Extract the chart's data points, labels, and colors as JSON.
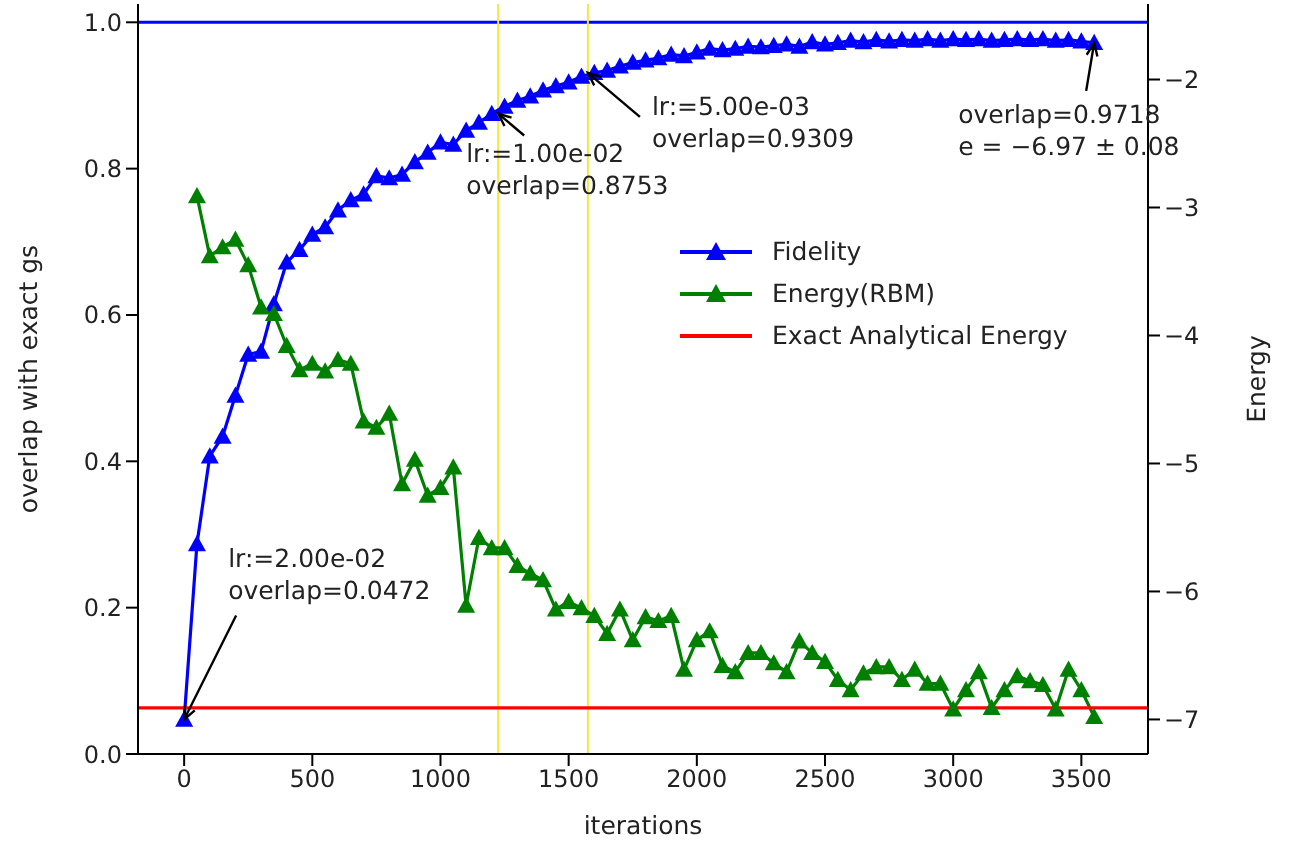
{
  "chart_data": {
    "type": "line",
    "xlabel": "iterations",
    "ylabel": "overlap with exact gs",
    "y2label": "Energy",
    "x": [
      0,
      50,
      100,
      150,
      200,
      250,
      300,
      350,
      400,
      450,
      500,
      550,
      600,
      650,
      700,
      750,
      800,
      850,
      900,
      950,
      1000,
      1050,
      1100,
      1150,
      1200,
      1250,
      1300,
      1350,
      1400,
      1450,
      1500,
      1550,
      1600,
      1650,
      1700,
      1750,
      1800,
      1850,
      1900,
      1950,
      2000,
      2050,
      2100,
      2150,
      2200,
      2250,
      2300,
      2350,
      2400,
      2450,
      2500,
      2550,
      2600,
      2650,
      2700,
      2750,
      2800,
      2850,
      2900,
      2950,
      3000,
      3050,
      3100,
      3150,
      3200,
      3250,
      3300,
      3350,
      3400,
      3450,
      3500,
      3550
    ],
    "series": [
      {
        "name": "Fidelity",
        "color": "#0000ff",
        "marker": "triangle",
        "values": [
          0.047,
          0.287,
          0.407,
          0.434,
          0.49,
          0.546,
          0.55,
          0.615,
          0.672,
          0.689,
          0.71,
          0.72,
          0.743,
          0.757,
          0.765,
          0.79,
          0.787,
          0.792,
          0.809,
          0.822,
          0.836,
          0.833,
          0.852,
          0.863,
          0.875,
          0.885,
          0.893,
          0.899,
          0.907,
          0.913,
          0.918,
          0.926,
          0.931,
          0.934,
          0.94,
          0.945,
          0.948,
          0.951,
          0.956,
          0.954,
          0.959,
          0.964,
          0.962,
          0.964,
          0.967,
          0.966,
          0.968,
          0.97,
          0.967,
          0.973,
          0.97,
          0.972,
          0.975,
          0.973,
          0.976,
          0.974,
          0.976,
          0.975,
          0.977,
          0.975,
          0.977,
          0.976,
          0.977,
          0.975,
          0.976,
          0.977,
          0.976,
          0.977,
          0.975,
          0.976,
          0.974,
          0.972
        ]
      },
      {
        "name": "Energy(RBM)",
        "color": "#008000",
        "marker": "triangle",
        "axis": "y2",
        "values": [
          null,
          -2.91,
          -3.38,
          -3.31,
          -3.25,
          -3.45,
          -3.78,
          -3.83,
          -4.08,
          -4.27,
          -4.22,
          -4.28,
          -4.19,
          -4.22,
          -4.67,
          -4.72,
          -4.61,
          -5.16,
          -4.97,
          -5.25,
          -5.19,
          -5.03,
          -6.11,
          -5.58,
          -5.66,
          -5.66,
          -5.8,
          -5.86,
          -5.91,
          -6.14,
          -6.08,
          -6.13,
          -6.19,
          -6.33,
          -6.14,
          -6.38,
          -6.2,
          -6.23,
          -6.19,
          -6.61,
          -6.38,
          -6.31,
          -6.58,
          -6.63,
          -6.48,
          -6.48,
          -6.56,
          -6.63,
          -6.39,
          -6.48,
          -6.55,
          -6.69,
          -6.77,
          -6.64,
          -6.59,
          -6.59,
          -6.69,
          -6.61,
          -6.72,
          -6.72,
          -6.92,
          -6.77,
          -6.63,
          -6.91,
          -6.77,
          -6.66,
          -6.7,
          -6.73,
          -6.92,
          -6.61,
          -6.77,
          -6.98
        ]
      },
      {
        "name": "Exact Analytical Energy",
        "color": "#ff0000",
        "marker": "none",
        "axis": "y2",
        "x": [
          -180,
          3760
        ],
        "values": [
          -6.91,
          -6.91
        ]
      }
    ],
    "xlim": [
      -180,
      3760
    ],
    "xticks": [
      0,
      500,
      1000,
      1500,
      2000,
      2500,
      3000,
      3500
    ],
    "ylim": [
      0,
      1.025
    ],
    "yticks": [
      {
        "value": 0,
        "label": "0.0"
      },
      {
        "value": 0.2,
        "label": "0.2"
      },
      {
        "value": 0.4,
        "label": "0.4"
      },
      {
        "value": 0.6,
        "label": "0.6"
      },
      {
        "value": 0.8,
        "label": "0.8"
      },
      {
        "value": 1,
        "label": "1.0"
      }
    ],
    "y2lim": [
      -7.27,
      -1.41
    ],
    "y2ticks": [
      {
        "value": -2,
        "label": "−2"
      },
      {
        "value": -3,
        "label": "−3"
      },
      {
        "value": -4,
        "label": "−4"
      },
      {
        "value": -5,
        "label": "−5"
      },
      {
        "value": -6,
        "label": "−6"
      },
      {
        "value": -7,
        "label": "−7"
      }
    ],
    "ref_lines": [
      {
        "axis": "y",
        "value": 1,
        "color": "#0000ff"
      },
      {
        "axis": "x",
        "value": 1225,
        "color": "#f5e642"
      },
      {
        "axis": "x",
        "value": 1575,
        "color": "#f5e642"
      }
    ],
    "annotations": [
      {
        "text": "lr:=2.00e-02\noverlap=0.0472",
        "x": 0,
        "y": 0.0472
      },
      {
        "text": "lr:=1.00e-02\noverlap=0.8753",
        "x": 1225,
        "y": 0.8753
      },
      {
        "text": "lr:=5.00e-03\noverlap=0.9309",
        "x": 1575,
        "y": 0.9309
      },
      {
        "text": "overlap=0.9718\ne = −6.97 ± 0.08",
        "x": 3550,
        "y": 0.9718
      }
    ],
    "grid": false,
    "legend": "center right",
    "line_style": "solid"
  }
}
